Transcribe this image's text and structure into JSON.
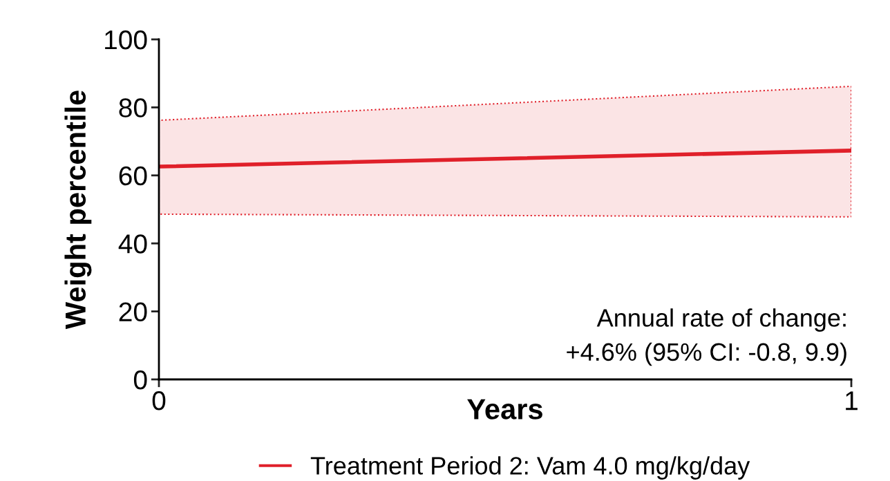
{
  "chart_data": {
    "type": "line",
    "xlabel": "Years",
    "ylabel": "Weight percentile",
    "x": [
      0,
      1
    ],
    "xlim": [
      0,
      1
    ],
    "xticks": [
      0,
      1
    ],
    "ylim": [
      0,
      100
    ],
    "yticks": [
      0,
      20,
      40,
      60,
      80,
      100
    ],
    "grid": false,
    "legend": "bottom",
    "marker": "none",
    "line_style": "solid",
    "series": [
      {
        "name": "Treatment Period 2: Vam 4.0 mg/kg/day",
        "color": "#e0202a",
        "values": [
          62.6,
          67.3
        ],
        "lower": [
          48.6,
          47.8
        ],
        "upper": [
          76.2,
          86.2
        ]
      }
    ],
    "annotations": [
      "Annual rate of change:\n+4.6% (95% CI: -0.8, 9.9)"
    ]
  }
}
